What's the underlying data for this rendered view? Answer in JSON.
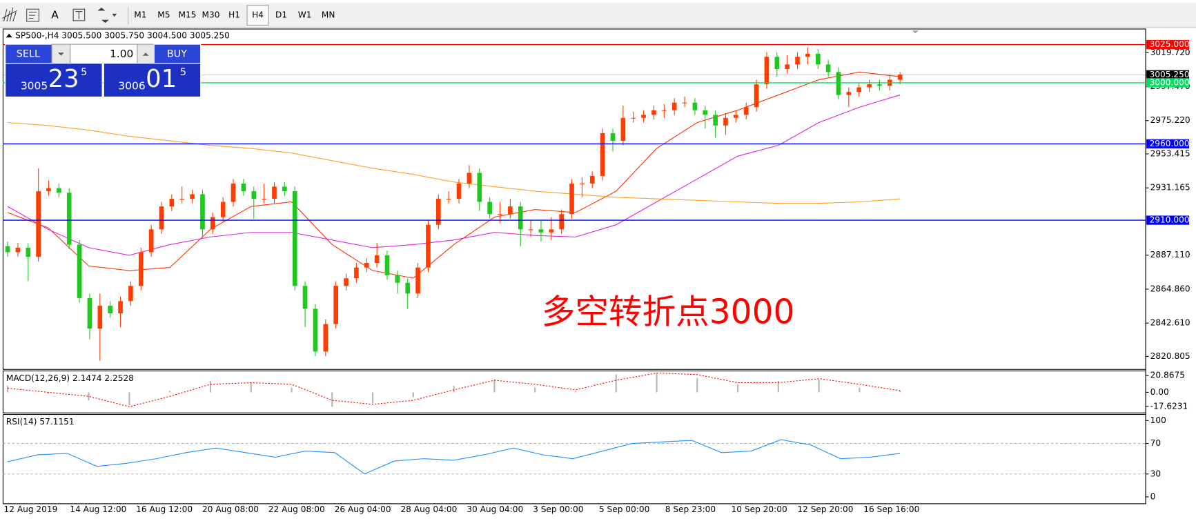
{
  "toolbar": {
    "text_tool": "A",
    "timeframes": [
      "M1",
      "M5",
      "M15",
      "M30",
      "H1",
      "H4",
      "D1",
      "W1",
      "MN"
    ],
    "active": "H4"
  },
  "trade_panel": {
    "sell": "SELL",
    "buy": "BUY",
    "volume": "1.00",
    "bid": {
      "big": "3005",
      "pips": "23",
      "point": "5"
    },
    "ask": {
      "big": "3006",
      "pips": "01",
      "point": "5"
    }
  },
  "chart_data": [
    {
      "type": "candlestick",
      "title": "SP500-,H4  3005.500 3005.750 3004.500 3005.250",
      "open": [
        2893,
        2889,
        2892,
        2886,
        2929,
        2931,
        2928,
        2894,
        2859,
        2839,
        2854,
        2849,
        2857,
        2867,
        2889,
        2904,
        2919,
        2924,
        2924,
        2927,
        2904,
        2912,
        2922,
        2934,
        2929,
        2924,
        2924,
        2932,
        2929,
        2867,
        2852,
        2824,
        2842,
        2867,
        2872,
        2879,
        2882,
        2887,
        2874,
        2869,
        2862,
        2879,
        2907,
        2924,
        2924,
        2934,
        2941,
        2922,
        2914,
        2914,
        2919,
        2904,
        2904,
        2902,
        2904,
        2914,
        2934,
        2934,
        2939,
        2967,
        2962,
        2977,
        2977,
        2979,
        2982,
        2982,
        2987,
        2987,
        2982,
        2979,
        2972,
        2977,
        2979,
        2984,
        2999,
        3017,
        3009,
        3012,
        3017,
        3019,
        3012,
        3007,
        2992,
        2994,
        2997,
        2999,
        2998,
        3002
      ],
      "high": [
        2896,
        2895,
        2895,
        2944,
        2936,
        2934,
        2931,
        2897,
        2862,
        2862,
        2857,
        2860,
        2870,
        2892,
        2907,
        2922,
        2927,
        2932,
        2930,
        2930,
        2915,
        2925,
        2937,
        2937,
        2932,
        2934,
        2935,
        2935,
        2932,
        2870,
        2855,
        2845,
        2870,
        2875,
        2882,
        2885,
        2895,
        2890,
        2877,
        2872,
        2882,
        2910,
        2927,
        2929,
        2937,
        2946,
        2944,
        2925,
        2922,
        2924,
        2922,
        2910,
        2910,
        2912,
        2917,
        2937,
        2938,
        2942,
        2970,
        2970,
        2985,
        2981,
        2982,
        2985,
        2986,
        2990,
        2991,
        2990,
        2985,
        2982,
        2980,
        2982,
        2987,
        3002,
        3020,
        3020,
        3018,
        3020,
        3023,
        3022,
        3015,
        3010,
        2997,
        3000,
        3002,
        3002,
        3005,
        3007
      ],
      "low": [
        2886,
        2886,
        2870,
        2883,
        2926,
        2925,
        2891,
        2856,
        2832,
        2818,
        2846,
        2840,
        2854,
        2864,
        2886,
        2901,
        2916,
        2921,
        2921,
        2898,
        2901,
        2909,
        2919,
        2926,
        2911,
        2921,
        2921,
        2926,
        2864,
        2840,
        2821,
        2821,
        2839,
        2864,
        2869,
        2876,
        2879,
        2871,
        2862,
        2852,
        2859,
        2876,
        2904,
        2921,
        2921,
        2931,
        2916,
        2911,
        2908,
        2911,
        2893,
        2899,
        2896,
        2897,
        2901,
        2911,
        2925,
        2931,
        2936,
        2955,
        2959,
        2974,
        2974,
        2976,
        2977,
        2979,
        2984,
        2979,
        2970,
        2964,
        2966,
        2974,
        2976,
        2981,
        2996,
        3004,
        3006,
        3009,
        3012,
        3009,
        3004,
        2989,
        2984,
        2991,
        2994,
        2995,
        2995,
        2999
      ],
      "close": [
        2889,
        2892,
        2886,
        2929,
        2931,
        2928,
        2894,
        2859,
        2839,
        2854,
        2849,
        2857,
        2867,
        2889,
        2904,
        2919,
        2924,
        2924,
        2927,
        2904,
        2912,
        2922,
        2934,
        2929,
        2924,
        2924,
        2932,
        2929,
        2867,
        2852,
        2824,
        2842,
        2867,
        2872,
        2879,
        2882,
        2887,
        2874,
        2869,
        2862,
        2879,
        2907,
        2924,
        2924,
        2934,
        2941,
        2922,
        2914,
        2914,
        2919,
        2904,
        2904,
        2902,
        2904,
        2914,
        2934,
        2934,
        2939,
        2967,
        2962,
        2977,
        2977,
        2979,
        2982,
        2982,
        2987,
        2987,
        2982,
        2979,
        2972,
        2977,
        2979,
        2984,
        2999,
        3017,
        3009,
        3012,
        3017,
        3019,
        3012,
        3007,
        2992,
        2994,
        2997,
        2999,
        2998,
        3002,
        3005.25
      ],
      "up_color": "#ff3d00",
      "down_color": "#1ec81e",
      "lines": [
        {
          "color": "#ff3300",
          "values": [
            2915,
            2905,
            2880,
            2877,
            2879,
            2904,
            2919,
            2922,
            2894,
            2877,
            2872,
            2894,
            2912,
            2917,
            2915,
            2929,
            2957,
            2974,
            2982,
            2992,
            3002,
            3007,
            3004
          ]
        },
        {
          "color": "#e020e0",
          "values": [
            2919,
            2904,
            2892,
            2887,
            2894,
            2899,
            2902,
            2902,
            2897,
            2892,
            2894,
            2897,
            2902,
            2900,
            2899,
            2907,
            2922,
            2937,
            2952,
            2959,
            2974,
            2984,
            2992
          ]
        },
        {
          "color": "#ffa020",
          "values": [
            2974,
            2972,
            2969,
            2965,
            2962,
            2959,
            2957,
            2954,
            2949,
            2944,
            2940,
            2935,
            2932,
            2929,
            2927,
            2925,
            2924,
            2923,
            2922,
            2921,
            2921,
            2922,
            2924
          ]
        }
      ],
      "hlines": [
        {
          "value": 3025,
          "label": "3025.000",
          "color": "#ff0000"
        },
        {
          "value": 3005.25,
          "label": "3005.250",
          "color": "#000000"
        },
        {
          "value": 3000,
          "label": "3000.000",
          "color": "#00e060"
        },
        {
          "value": 2960,
          "label": "2960.000",
          "color": "#0000ff"
        },
        {
          "value": 2910,
          "label": "2910.000",
          "color": "#0000ff"
        }
      ],
      "ylim": [
        2812.8,
        3034.2
      ],
      "yticks": [
        {
          "value": 3019.72,
          "label": "3019.720"
        },
        {
          "value": 2997.47,
          "label": "2997.470"
        },
        {
          "value": 2975.22,
          "label": "2975.220"
        },
        2953.415,
        2931.165,
        {
          "value": 2887.11,
          "label": "2887.110"
        },
        {
          "value": 2864.86,
          "label": "2864.860"
        },
        {
          "value": 2842.61,
          "label": "2842.610"
        },
        2820.805
      ],
      "xtick_labels": [
        "12 Aug 2019",
        "14 Aug 12:00",
        "16 Aug 12:00",
        "20 Aug 08:00",
        "22 Aug 08:00",
        "26 Aug 04:00",
        "28 Aug 04:00",
        "30 Aug 04:00",
        "3 Sep 00:00",
        "5 Sep 00:00",
        "8 Sep 23:00",
        "10 Sep 20:00",
        "12 Sep 20:00",
        "16 Sep 16:00"
      ],
      "annotation": "多空转折点3000"
    },
    {
      "type": "macd",
      "title": "MACD(12,26,9) 2.1474 2.2528",
      "histogram": [
        8,
        -2,
        -10,
        -16,
        2,
        14,
        12,
        6,
        -18,
        -14,
        -6,
        8,
        16,
        6,
        2,
        22,
        24,
        18,
        10,
        14,
        16,
        6,
        2
      ],
      "signal": [
        5,
        0,
        -5,
        -18,
        -5,
        10,
        12,
        10,
        -10,
        -15,
        -10,
        3,
        15,
        10,
        3,
        15,
        24,
        22,
        12,
        12,
        17,
        10,
        2
      ],
      "histogram_color": "#b8b8b8",
      "signal_color": "#ff0000",
      "ylim": [
        -24.7,
        26.6
      ],
      "yticks": [
        20.8675,
        {
          "value": 0,
          "label": "0.00"
        },
        -17.6231
      ]
    },
    {
      "type": "line",
      "title": "RSI(14) 57.1151",
      "values": [
        46,
        55,
        57,
        40,
        44,
        50,
        58,
        64,
        58,
        52,
        60,
        58,
        30,
        47,
        50,
        48,
        55,
        64,
        55,
        50,
        60,
        70,
        72,
        74,
        58,
        60,
        75,
        68,
        50,
        52,
        57
      ],
      "color": "#1e90ff",
      "ylim": [
        0,
        100
      ],
      "yticks": [
        0,
        30,
        70,
        100
      ]
    }
  ]
}
